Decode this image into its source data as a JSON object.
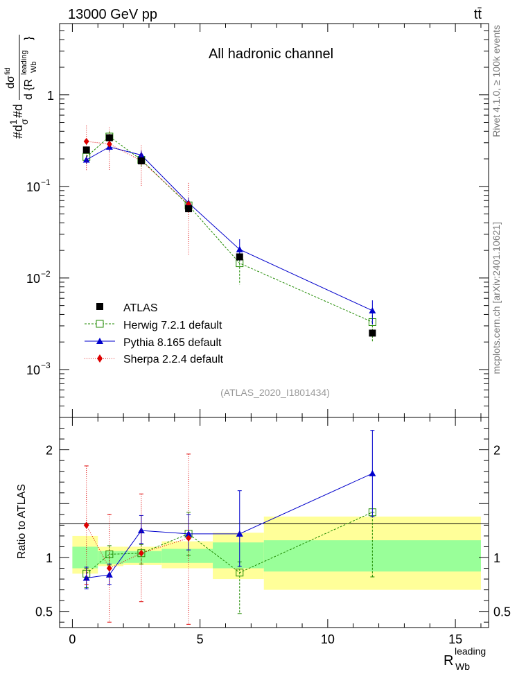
{
  "header": {
    "energy_label": "13000 GeV pp",
    "process_label": "tt̄",
    "channel_label": "All hadronic channel",
    "analysis_id": "(ATLAS_2020_I1801434)",
    "side_label_top": "Rivet 4.1.0, ≥ 100k events",
    "side_label_bottom": "mcplots.cern.ch [arXiv:2401.10621]"
  },
  "axes": {
    "main_ylabel_prefix": "#d",
    "main_ylabel_frac_num": "1",
    "main_ylabel_frac_den": "σ",
    "main_ylabel_rest": "#d",
    "main_ylabel_big_num": "dσ",
    "main_ylabel_big_num_sup": "fid",
    "main_ylabel_big_den": "d {R",
    "main_ylabel_big_den_sup": "leading",
    "main_ylabel_big_den_sub": "Wb",
    "main_ylabel_big_den_end": "}",
    "ratio_ylabel": "Ratio to ATLAS",
    "xlabel_main": "R",
    "xlabel_sup": "leading",
    "xlabel_sub": "Wb"
  },
  "colors": {
    "atlas": "#000000",
    "herwig": "#1f8a00",
    "pythia": "#0000cc",
    "sherpa": "#dd0000",
    "band_outer": "#ffff99",
    "band_inner": "#99ff99"
  },
  "chart_data": {
    "type": "scatter",
    "x_range": [
      -0.5,
      16.3
    ],
    "main_y_log_range": [
      0.0003,
      6
    ],
    "ratio_y_range": [
      0.35,
      2.3
    ],
    "x_ticks_major": [
      0,
      5,
      10,
      15
    ],
    "x_tick_labels": [
      "0",
      "5",
      "10",
      "15"
    ],
    "main_y_tick_values": [
      1,
      0.1,
      0.01,
      0.001
    ],
    "main_y_tick_labels": [
      {
        "mant": "1",
        "exp": ""
      },
      {
        "mant": "10",
        "exp": "−1"
      },
      {
        "mant": "10",
        "exp": "−2"
      },
      {
        "mant": "10",
        "exp": "−3"
      }
    ],
    "ratio_y_tick_values": [
      2,
      1,
      0.5
    ],
    "ratio_y_tick_labels": [
      "2",
      "1",
      "0.5"
    ],
    "bins": [
      {
        "lo": 0.0,
        "hi": 1.0
      },
      {
        "lo": 1.0,
        "hi": 2.0
      },
      {
        "lo": 2.0,
        "hi": 3.5
      },
      {
        "lo": 3.5,
        "hi": 5.5
      },
      {
        "lo": 5.5,
        "hi": 7.5
      },
      {
        "lo": 7.5,
        "hi": 16.0
      }
    ],
    "ratio_band_inner": [
      [
        0.9,
        1.1
      ],
      [
        0.94,
        1.06
      ],
      [
        0.95,
        1.06
      ],
      [
        0.95,
        1.08
      ],
      [
        0.9,
        1.14
      ],
      [
        0.87,
        1.16
      ]
    ],
    "ratio_band_outer": [
      [
        0.85,
        1.2
      ],
      [
        0.92,
        1.1
      ],
      [
        0.93,
        1.1
      ],
      [
        0.9,
        1.15
      ],
      [
        0.8,
        1.23
      ],
      [
        0.7,
        1.38
      ]
    ],
    "series": [
      {
        "name": "ATLAS",
        "marker": "square-filled",
        "color": "#000000",
        "x": [
          0.55,
          1.45,
          2.7,
          4.55,
          6.55,
          11.75
        ],
        "y": [
          0.25,
          0.34,
          0.19,
          0.057,
          0.017,
          0.0025
        ],
        "err_lo": [
          0,
          0,
          0,
          0,
          0,
          0
        ],
        "err_hi": [
          0,
          0,
          0,
          0,
          0,
          0
        ],
        "ratio": [
          1,
          1,
          1,
          1,
          1,
          1
        ],
        "ratio_err_lo": [
          0,
          0,
          0,
          0,
          0,
          0
        ],
        "ratio_err_hi": [
          0,
          0,
          0,
          0,
          0,
          0
        ]
      },
      {
        "name": "Herwig 7.2.1 default",
        "marker": "square-open",
        "color": "#1f8a00",
        "x": [
          0.55,
          1.45,
          2.7,
          4.55,
          6.55,
          11.75
        ],
        "y": [
          0.21,
          0.35,
          0.195,
          0.062,
          0.0145,
          0.0033
        ],
        "err_lo": [
          0.03,
          0.05,
          0.03,
          0.008,
          0.006,
          0.0013
        ],
        "err_hi": [
          0.03,
          0.05,
          0.03,
          0.01,
          0.006,
          0.001
        ],
        "ratio": [
          0.85,
          1.03,
          1.04,
          1.22,
          0.86,
          1.42
        ],
        "ratio_err_lo": [
          0.13,
          0.1,
          0.1,
          0.2,
          0.38,
          0.6
        ],
        "ratio_err_hi": [
          0.05,
          0.08,
          0.08,
          0.2,
          0.1,
          0.0
        ]
      },
      {
        "name": "Pythia 8.165 default",
        "marker": "triangle",
        "color": "#0000cc",
        "x": [
          0.55,
          1.45,
          2.7,
          4.55,
          6.55,
          11.75
        ],
        "y": [
          0.195,
          0.27,
          0.22,
          0.066,
          0.0205,
          0.0044
        ],
        "err_lo": [
          0.02,
          0.03,
          0.02,
          0.008,
          0.005,
          0.0013
        ],
        "err_hi": [
          0.02,
          0.03,
          0.025,
          0.01,
          0.006,
          0.0013
        ],
        "ratio": [
          0.81,
          0.84,
          1.25,
          1.22,
          1.22,
          1.78
        ],
        "ratio_err_lo": [
          0.1,
          0.09,
          0.12,
          0.15,
          0.3,
          0.4
        ],
        "ratio_err_hi": [
          0.1,
          0.1,
          0.14,
          0.18,
          0.4,
          0.4
        ]
      },
      {
        "name": "Sherpa 2.2.4 default",
        "marker": "diamond",
        "color": "#dd0000",
        "x": [
          0.55,
          1.45,
          2.7,
          4.55,
          6.55,
          11.75
        ],
        "y": [
          0.31,
          0.29,
          0.19,
          0.064,
          null,
          null
        ],
        "err_lo": [
          0.16,
          0.14,
          0.09,
          0.046,
          0,
          0
        ],
        "err_hi": [
          0.15,
          0.15,
          0.09,
          0.045,
          0,
          0
        ],
        "ratio": [
          1.3,
          0.9,
          1.04,
          1.18,
          null,
          null
        ],
        "ratio_err_lo": [
          0.55,
          0.5,
          0.45,
          0.8,
          0,
          0
        ],
        "ratio_err_hi": [
          0.55,
          0.5,
          0.55,
          0.78,
          0,
          0
        ]
      }
    ]
  }
}
